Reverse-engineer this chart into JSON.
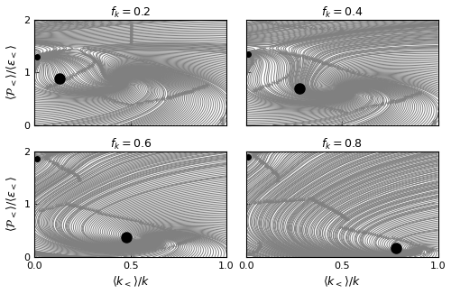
{
  "fk_values": [
    0.2,
    0.4,
    0.6,
    0.8
  ],
  "xlim": [
    0.0,
    1.0
  ],
  "ylim": [
    0.0,
    2.0
  ],
  "equilibrium_points": [
    [
      0.13,
      0.88
    ],
    [
      0.28,
      0.7
    ],
    [
      0.48,
      0.38
    ],
    [
      0.78,
      0.17
    ]
  ],
  "unstable_points": [
    [
      0.0,
      1.3
    ],
    [
      0.0,
      1.35
    ],
    [
      0.0,
      1.85
    ],
    [
      0.0,
      1.9
    ]
  ],
  "stream_color": "#808080",
  "eq_color": "black",
  "eq_marker_size": 8,
  "linewidth": 0.7,
  "density": 2.2,
  "background_color": "white",
  "title_fontsize": 9,
  "label_fontsize": 9,
  "tick_fontsize": 8
}
